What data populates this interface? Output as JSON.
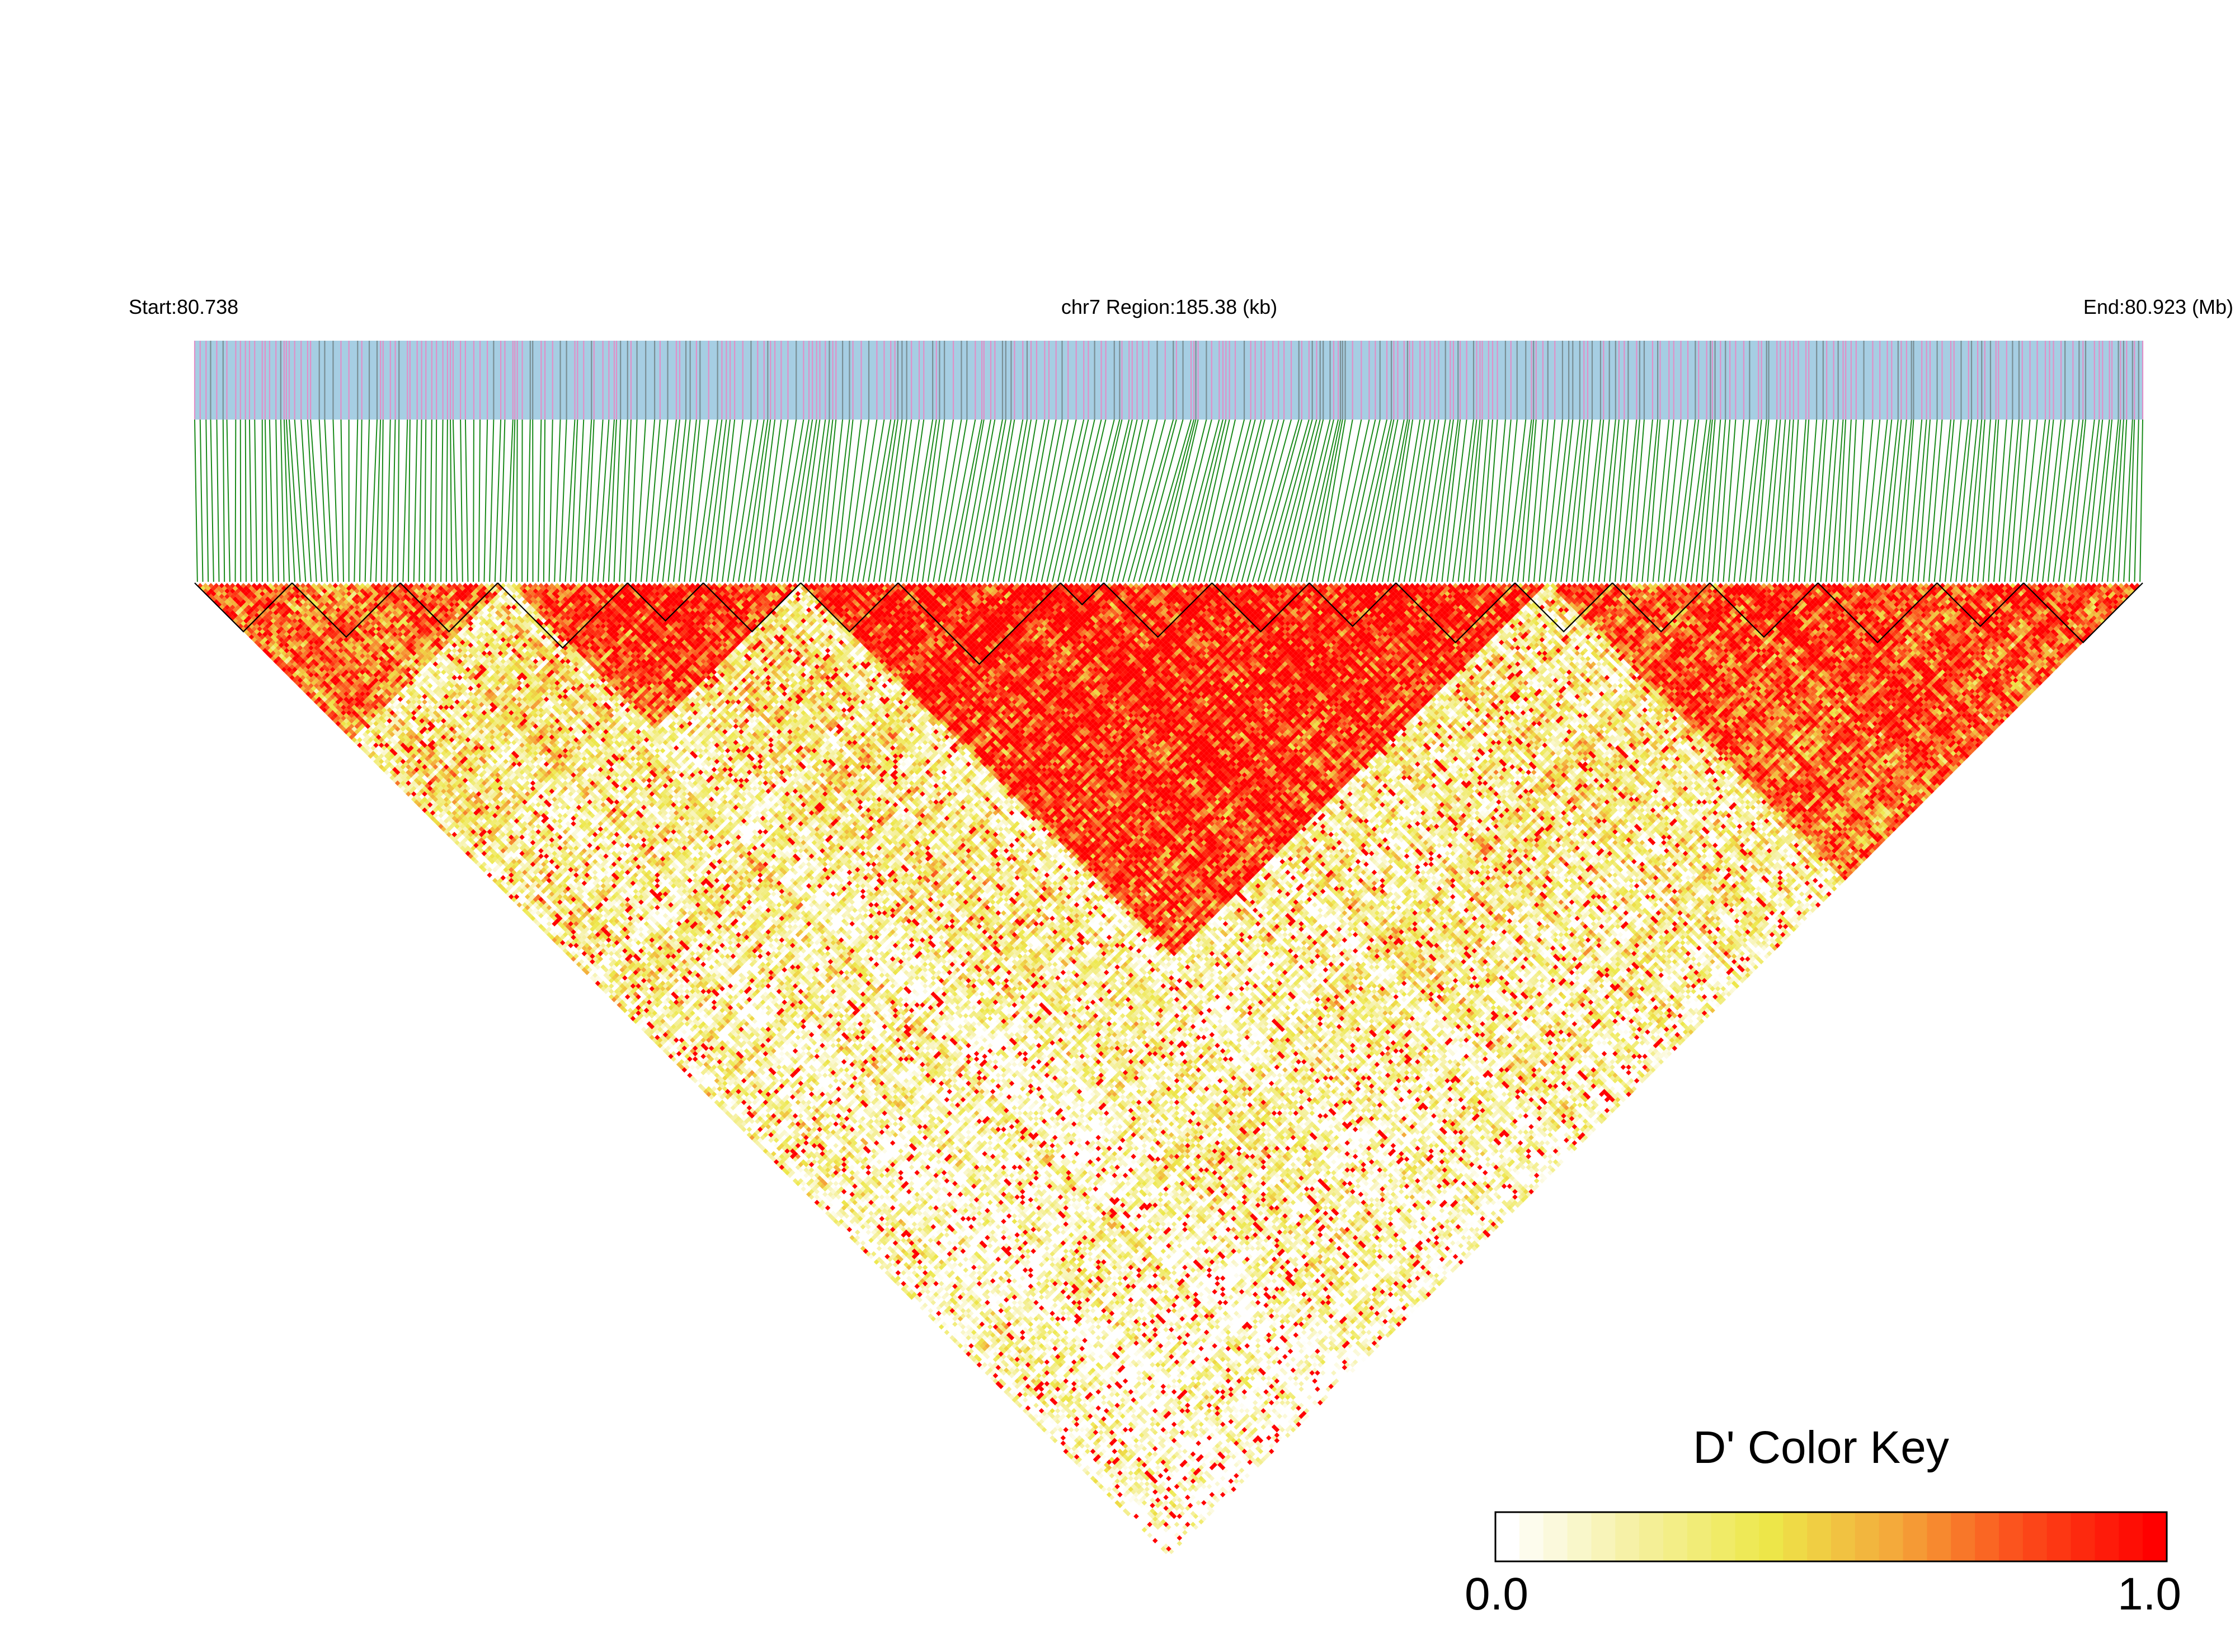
{
  "chart_data": {
    "type": "heatmap",
    "subtype": "linkage-disequilibrium triangle",
    "header": {
      "start_label": "Start:80.738",
      "region_label": "chr7 Region:185.38 (kb)",
      "end_label": "End:80.923 (Mb)"
    },
    "region": {
      "chromosome": "chr7",
      "start_mb": 80.738,
      "end_mb": 80.923,
      "length_kb": 185.38
    },
    "metric": "D'",
    "color_key": {
      "title": "D' Color Key",
      "min_label": "0.0",
      "max_label": "1.0",
      "min": 0.0,
      "max": 1.0,
      "colors": [
        "#ffffff",
        "#f5f0a0",
        "#ede84a",
        "#f4a83a",
        "#fc4a1a",
        "#ff0000"
      ]
    },
    "snp_track_colors": {
      "background": "#a6cee3",
      "tick_a": "#e090c8",
      "tick_b": "#7a8f95",
      "connector": "#1a8a1a"
    },
    "snp_count": 360,
    "block_boundaries_snp_index": [
      0,
      18,
      38,
      56,
      80,
      94,
      112,
      130,
      160,
      168,
      188,
      206,
      222,
      244,
      262,
      280,
      300,
      322,
      338,
      360
    ],
    "dprime_regions": [
      {
        "from_snp": 0,
        "to_snp": 58,
        "mean_dprime": 0.72
      },
      {
        "from_snp": 58,
        "to_snp": 112,
        "mean_dprime": 0.85
      },
      {
        "from_snp": 112,
        "to_snp": 250,
        "mean_dprime": 0.97
      },
      {
        "from_snp": 250,
        "to_snp": 360,
        "mean_dprime": 0.82
      },
      {
        "from_snp": 0,
        "to_snp": 360,
        "mean_dprime": 0.3
      }
    ]
  }
}
